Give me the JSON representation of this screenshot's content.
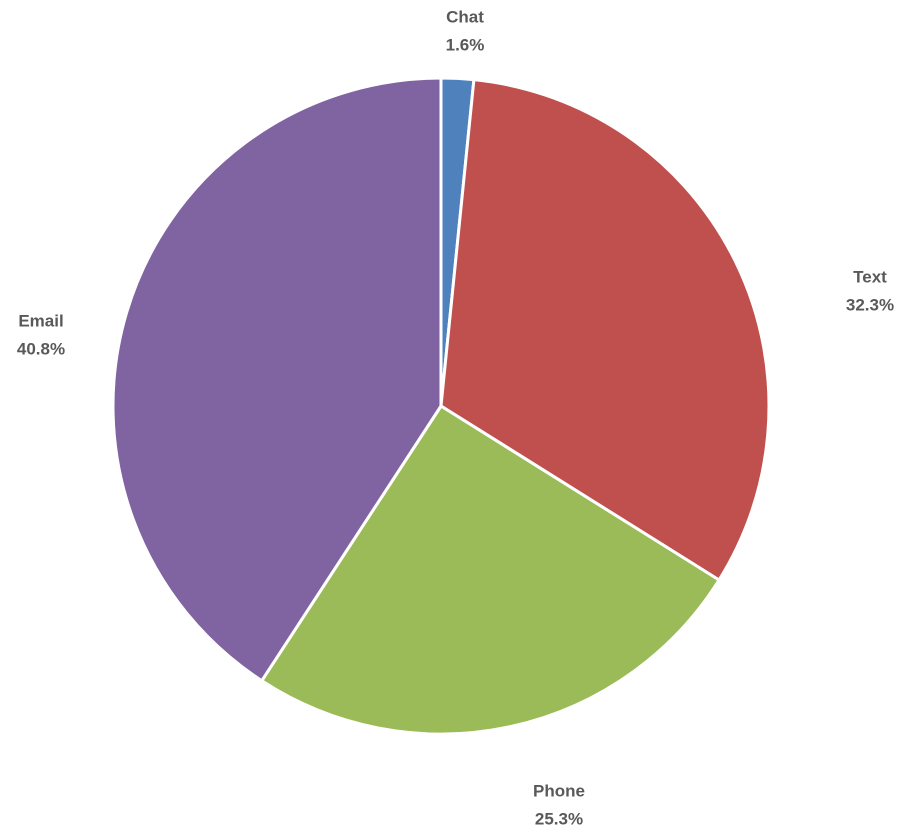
{
  "chart_data": {
    "type": "pie",
    "start_angle_deg": 0,
    "direction": "clockwise",
    "slices": [
      {
        "label": "Chat",
        "value": 1.6,
        "value_label": "1.6%",
        "color": "#4F81BD"
      },
      {
        "label": "Text",
        "value": 32.3,
        "value_label": "32.3%",
        "color": "#C0504D"
      },
      {
        "label": "Phone",
        "value": 25.3,
        "value_label": "25.3%",
        "color": "#9BBB59"
      },
      {
        "label": "Email",
        "value": 40.8,
        "value_label": "40.8%",
        "color": "#8064A2"
      }
    ]
  }
}
